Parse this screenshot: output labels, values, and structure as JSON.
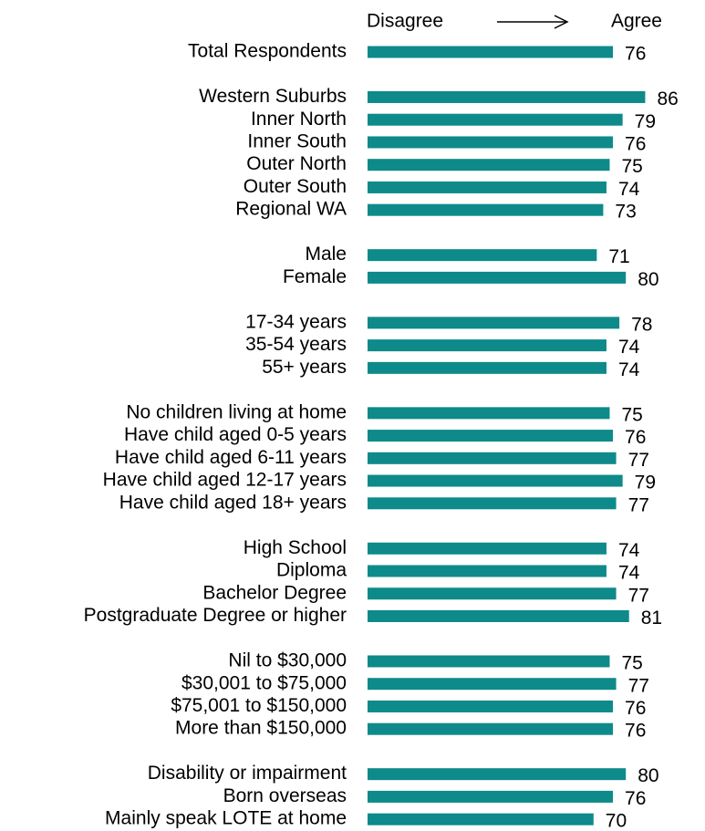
{
  "chart_data": {
    "type": "hbar",
    "annotations": {
      "left": "Disagree",
      "right": "Agree"
    },
    "categories": [
      "Total Respondents",
      null,
      "Western Suburbs",
      "Inner North",
      "Inner South",
      "Outer North",
      "Outer South",
      "Regional WA",
      null,
      "Male",
      "Female",
      null,
      "17-34 years",
      "35-54 years",
      "55+ years",
      null,
      "No children living at home",
      "Have child aged 0-5 years",
      "Have child aged 6-11 years",
      "Have child aged 12-17 years",
      "Have child aged 18+ years",
      null,
      "High School",
      "Diploma",
      "Bachelor Degree",
      "Postgraduate Degree or higher",
      null,
      "Nil to $30,000",
      "$30,001 to $75,000",
      "$75,001 to $150,000",
      "More than $150,000",
      null,
      "Disability or impairment",
      "Born overseas",
      "Mainly speak LOTE at home"
    ],
    "values": [
      76,
      null,
      86,
      79,
      76,
      75,
      74,
      73,
      null,
      71,
      80,
      null,
      78,
      74,
      74,
      null,
      75,
      76,
      77,
      79,
      77,
      null,
      74,
      74,
      77,
      81,
      null,
      75,
      77,
      76,
      76,
      null,
      80,
      76,
      70
    ],
    "color": "#0e8a8a",
    "xlim": [
      0,
      100
    ]
  }
}
